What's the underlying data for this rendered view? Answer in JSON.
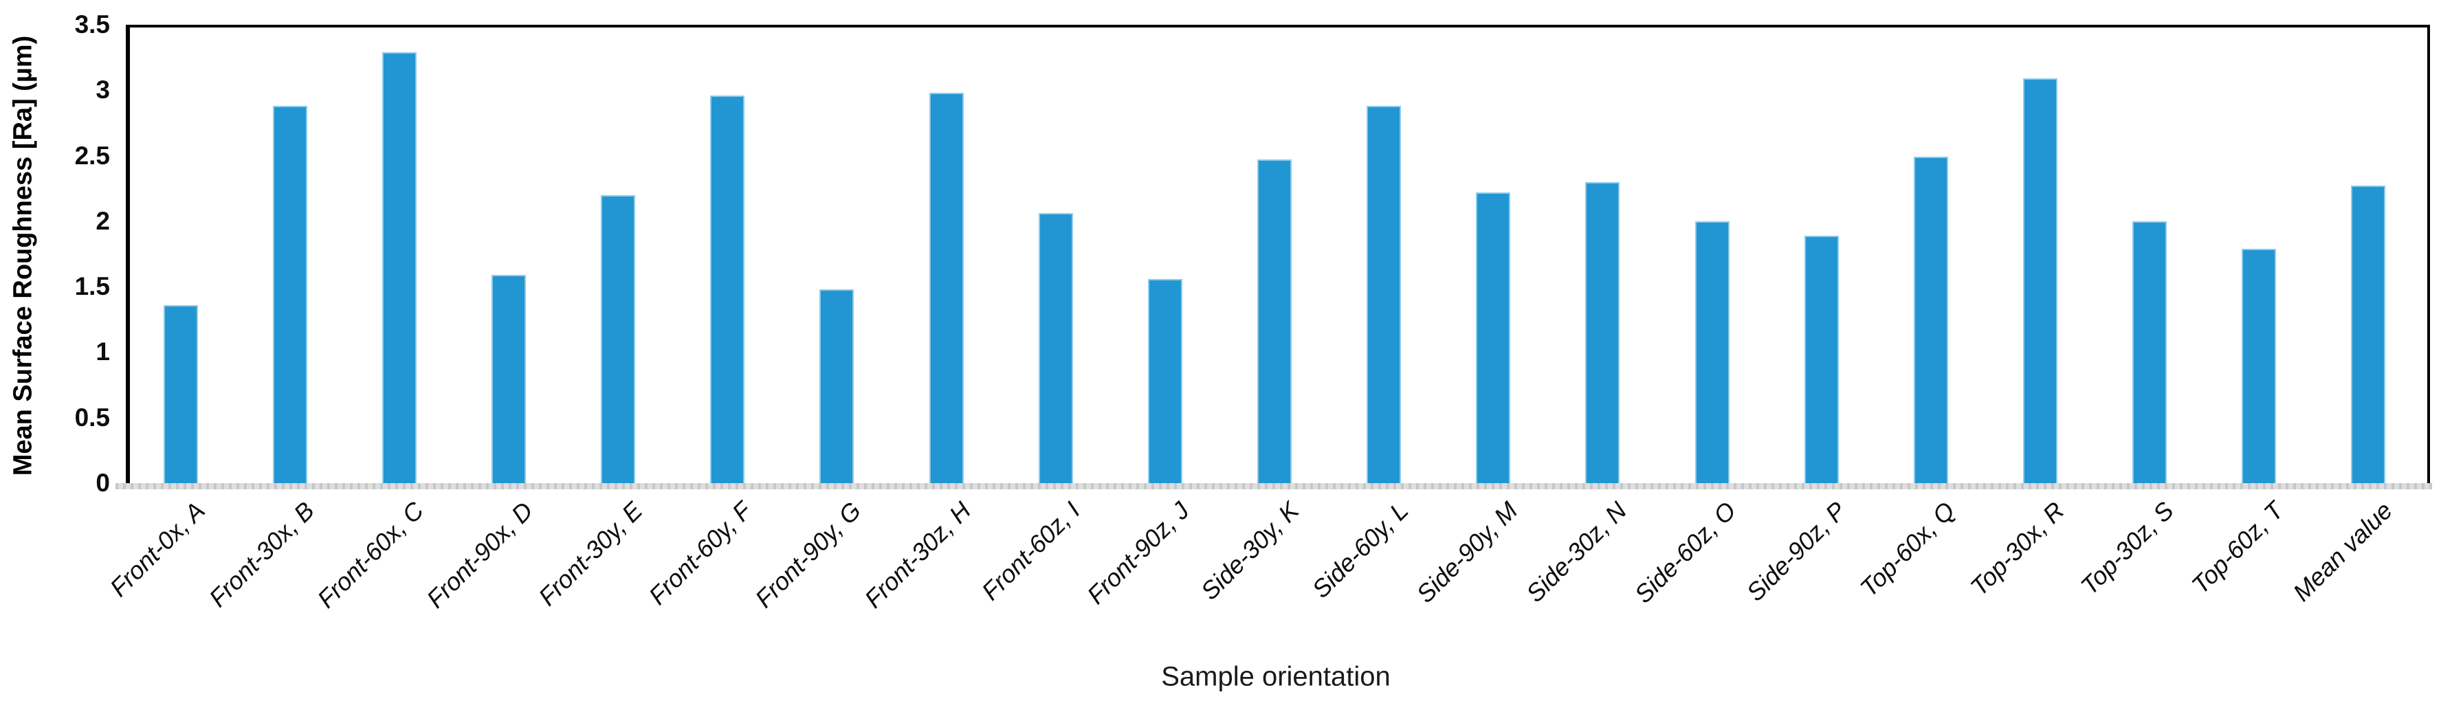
{
  "chart_data": {
    "type": "bar",
    "title": "",
    "xlabel": "Sample orientation",
    "ylabel": "Mean Surface Roughness [Ra] (µm)",
    "categories": [
      "Front-0x, A",
      "Front-30x, B",
      "Front-60x, C",
      "Front-90x, D",
      "Front-30y, E",
      "Front-60y, F",
      "Front-90y, G",
      "Front-30z, H",
      "Front-60z, I",
      "Front-90z, J",
      "Side-30y, K",
      "Side-60y, L",
      "Side-90y, M",
      "Side-30z, N",
      "Side-60z, O",
      "Side-90z, P",
      "Top-60x, Q",
      "Top-30x, R",
      "Top-30z, S",
      "Top-60z, T",
      "Mean value"
    ],
    "values": [
      1.36,
      2.88,
      3.29,
      1.59,
      2.2,
      2.96,
      1.48,
      2.98,
      2.06,
      1.56,
      2.47,
      2.88,
      2.22,
      2.3,
      2.0,
      1.89,
      2.49,
      3.09,
      2.0,
      1.79,
      2.27
    ],
    "ylim": [
      0,
      3.5
    ],
    "ytick_step": 0.5,
    "ytick_labels": [
      "0",
      "0.5",
      "1",
      "1.5",
      "2",
      "2.5",
      "3",
      "3.5"
    ],
    "grid": false,
    "legend": null,
    "bar_color": "#2196d3",
    "bar_edge_color": "#8ccbea",
    "axis_frame_color": "#000000",
    "x_axis_line_color": "#d9d9d9",
    "category_label_style": "italic, rotated 45°"
  }
}
